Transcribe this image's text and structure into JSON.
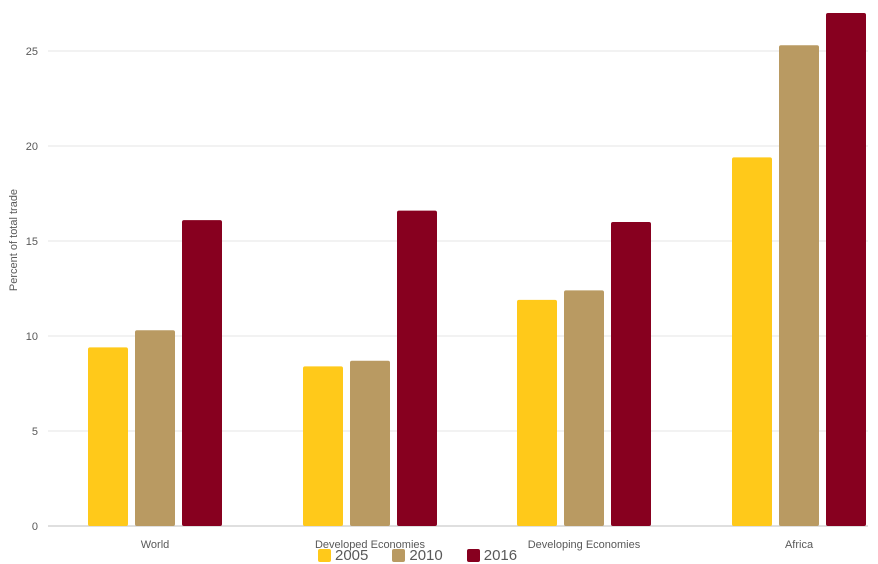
{
  "chart_data": {
    "type": "bar",
    "title": "",
    "xlabel": "",
    "ylabel": "Percent of total trade",
    "ylim": [
      0,
      27
    ],
    "yticks": [
      0,
      5,
      10,
      15,
      20,
      25
    ],
    "categories": [
      "World",
      "Developed Economies",
      "Developing Economies",
      "Africa"
    ],
    "series": [
      {
        "name": "2005",
        "color": "#FFC91A",
        "values": [
          9.4,
          8.4,
          11.9,
          19.4
        ]
      },
      {
        "name": "2010",
        "color": "#B99A62",
        "values": [
          10.3,
          8.7,
          12.4,
          25.3
        ]
      },
      {
        "name": "2016",
        "color": "#87001F",
        "values": [
          16.1,
          16.6,
          16.0,
          27.0
        ]
      }
    ],
    "grid": true,
    "legend_position": "bottom"
  }
}
